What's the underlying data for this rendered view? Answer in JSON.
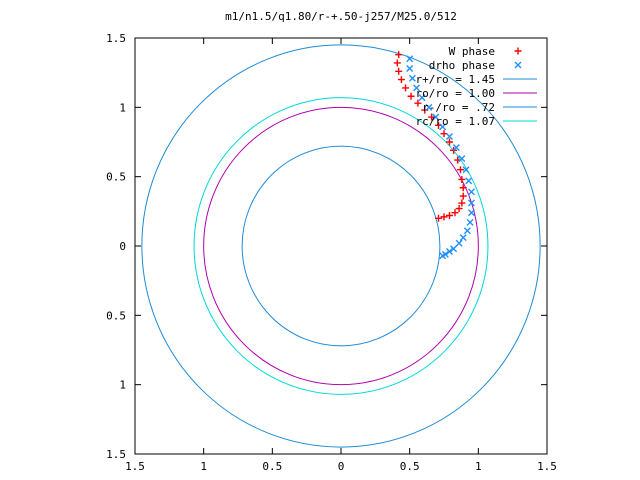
{
  "chart_data": {
    "type": "scatter",
    "title": "m1/n1.5/q1.80/r-+.50-j257/M25.0/512",
    "xlabel": "",
    "ylabel": "",
    "xlim": [
      -1.5,
      1.5
    ],
    "ylim": [
      -1.5,
      1.5
    ],
    "x_ticks": [
      -1.5,
      -1,
      -0.5,
      0,
      0.5,
      1,
      1.5
    ],
    "x_tick_labels": [
      "1.5",
      "1",
      "0.5",
      "0",
      "0.5",
      "1",
      "1.5"
    ],
    "y_ticks": [
      1.5,
      1,
      0.5,
      0,
      -0.5,
      -1,
      -1.5
    ],
    "y_tick_labels": [
      "1.5",
      "1",
      "0.5",
      "0",
      "0.5",
      "1",
      "1.5"
    ],
    "grid": false,
    "legend_position": "top-right",
    "series": [
      {
        "name": "W phase",
        "marker": "+",
        "color": "#ff0000",
        "x": [
          0.42,
          0.41,
          0.42,
          0.44,
          0.47,
          0.51,
          0.56,
          0.61,
          0.66,
          0.71,
          0.75,
          0.79,
          0.82,
          0.85,
          0.87,
          0.88,
          0.89,
          0.89,
          0.88,
          0.86,
          0.83,
          0.79,
          0.75,
          0.71
        ],
        "y": [
          1.38,
          1.32,
          1.26,
          1.2,
          1.14,
          1.08,
          1.03,
          0.98,
          0.93,
          0.87,
          0.81,
          0.75,
          0.69,
          0.62,
          0.55,
          0.48,
          0.42,
          0.36,
          0.31,
          0.27,
          0.24,
          0.22,
          0.21,
          0.2
        ]
      },
      {
        "name": "drho phase",
        "marker": "x",
        "color": "#1e90ff",
        "x": [
          0.5,
          0.5,
          0.52,
          0.55,
          0.59,
          0.64,
          0.69,
          0.74,
          0.79,
          0.84,
          0.88,
          0.91,
          0.93,
          0.95,
          0.95,
          0.95,
          0.94,
          0.92,
          0.89,
          0.86,
          0.82,
          0.79,
          0.76,
          0.74
        ],
        "y": [
          1.35,
          1.28,
          1.21,
          1.14,
          1.07,
          1.0,
          0.93,
          0.86,
          0.79,
          0.71,
          0.63,
          0.55,
          0.47,
          0.39,
          0.31,
          0.24,
          0.17,
          0.11,
          0.06,
          0.02,
          -0.02,
          -0.04,
          -0.06,
          -0.07
        ]
      },
      {
        "name": "r+/ro = 1.45",
        "type": "circle",
        "radius": 1.45,
        "color": "#1e8bd6"
      },
      {
        "name": "ro/ro = 1.00",
        "type": "circle",
        "radius": 1.0,
        "color": "#b000b0"
      },
      {
        "name": "r-/ro = .72",
        "type": "circle",
        "radius": 0.72,
        "color": "#1e8bd6"
      },
      {
        "name": "rc/ro = 1.07",
        "type": "circle",
        "radius": 1.07,
        "color": "#00d8d8"
      }
    ]
  }
}
